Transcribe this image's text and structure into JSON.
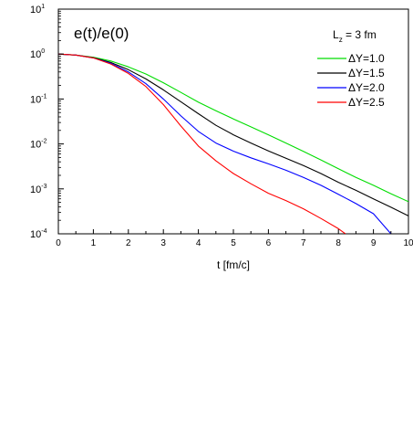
{
  "chart_data": {
    "type": "line",
    "title": "e(t)/e(0)",
    "xlabel": "t [fm/c]",
    "ylabel": "",
    "xlim": [
      0,
      10
    ],
    "ylim": [
      0.0001,
      10
    ],
    "yscale": "log",
    "grid": false,
    "x_ticks": [
      "0",
      "1",
      "2",
      "3",
      "4",
      "5",
      "6",
      "7",
      "8",
      "9",
      "10"
    ],
    "y_ticks": [
      {
        "base": "10",
        "exp": "1"
      },
      {
        "base": "10",
        "exp": "0"
      },
      {
        "base": "10",
        "exp": "-1"
      },
      {
        "base": "10",
        "exp": "-2"
      },
      {
        "base": "10",
        "exp": "-3"
      },
      {
        "base": "10",
        "exp": "-4"
      }
    ],
    "legend": {
      "position": "top-right",
      "title_main": "L",
      "title_sub": "z",
      "title_rest": " = 3 fm"
    },
    "series": [
      {
        "name": "ΔY=1.0",
        "color": "#00dd00",
        "x": [
          0,
          0.5,
          1,
          1.5,
          2,
          2.5,
          3,
          3.5,
          4,
          4.5,
          5,
          5.5,
          6,
          6.5,
          7,
          7.5,
          8,
          8.5,
          9,
          9.5,
          10
        ],
        "y": [
          1.0,
          0.95,
          0.85,
          0.7,
          0.52,
          0.36,
          0.23,
          0.14,
          0.085,
          0.055,
          0.036,
          0.024,
          0.016,
          0.0105,
          0.0068,
          0.0044,
          0.0028,
          0.0018,
          0.0012,
          0.00078,
          0.00052
        ]
      },
      {
        "name": "ΔY=1.5",
        "color": "#000000",
        "x": [
          0,
          0.5,
          1,
          1.5,
          2,
          2.5,
          3,
          3.5,
          4,
          4.5,
          5,
          5.5,
          6,
          6.5,
          7,
          7.5,
          8,
          8.5,
          9,
          9.5,
          10
        ],
        "y": [
          1.0,
          0.95,
          0.83,
          0.65,
          0.45,
          0.28,
          0.16,
          0.087,
          0.047,
          0.026,
          0.016,
          0.0105,
          0.007,
          0.0048,
          0.0033,
          0.0022,
          0.0014,
          0.00093,
          0.0006,
          0.00039,
          0.00025
        ]
      },
      {
        "name": "ΔY=2.0",
        "color": "#0000ff",
        "x": [
          0,
          0.5,
          1,
          1.5,
          2,
          2.5,
          3,
          3.5,
          4,
          4.5,
          5,
          5.5,
          6,
          6.5,
          7,
          7.5,
          8,
          8.5,
          9,
          9.5
        ],
        "y": [
          1.0,
          0.95,
          0.82,
          0.62,
          0.4,
          0.22,
          0.1,
          0.042,
          0.019,
          0.0105,
          0.0069,
          0.0049,
          0.0036,
          0.0026,
          0.0018,
          0.0012,
          0.00076,
          0.00047,
          0.00028,
          0.0001
        ]
      },
      {
        "name": "ΔY=2.5",
        "color": "#ff0000",
        "x": [
          0,
          0.5,
          1,
          1.5,
          2,
          2.5,
          3,
          3.5,
          4,
          4.5,
          5,
          5.5,
          6,
          6.5,
          7,
          7.5,
          8,
          8.2
        ],
        "y": [
          1.0,
          0.95,
          0.82,
          0.6,
          0.37,
          0.19,
          0.075,
          0.025,
          0.009,
          0.0042,
          0.0022,
          0.0013,
          0.0008,
          0.00055,
          0.00036,
          0.00022,
          0.00013,
          0.0001
        ]
      }
    ]
  }
}
